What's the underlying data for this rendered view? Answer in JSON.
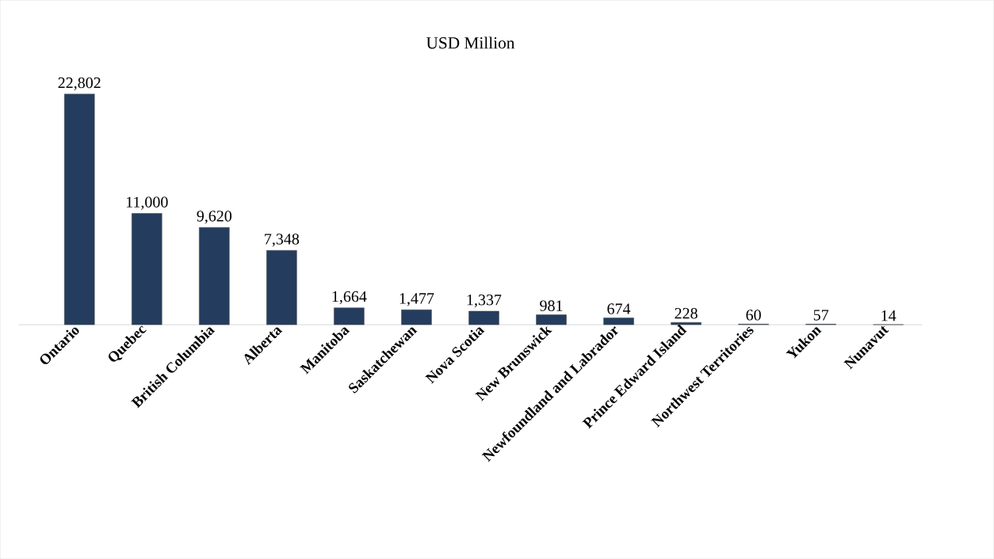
{
  "chart_data": {
    "type": "bar",
    "title": "USD Million",
    "categories": [
      "Ontario",
      "Quebec",
      "British Columbia",
      "Alberta",
      "Manitoba",
      "Saskatchewan",
      "Nova Scotia",
      "New Brunswick",
      "Newfoundland and Labrador",
      "Prince Edward Island",
      "Northwest Territories",
      "Yukon",
      "Nunavut"
    ],
    "values": [
      22802,
      11000,
      9620,
      7348,
      1664,
      1477,
      1337,
      981,
      674,
      228,
      60,
      57,
      14
    ],
    "value_labels": [
      "22,802",
      "11,000",
      "9,620",
      "7,348",
      "1,664",
      "1,477",
      "1,337",
      "981",
      "674",
      "228",
      "60",
      "57",
      "14"
    ],
    "color": "#243d5e"
  }
}
